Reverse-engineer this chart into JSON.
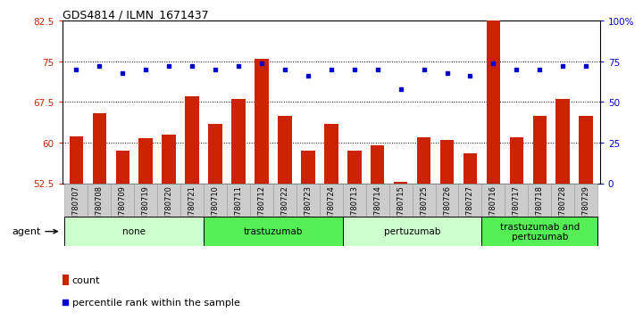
{
  "title": "GDS4814 / ILMN_1671437",
  "samples": [
    "GSM780707",
    "GSM780708",
    "GSM780709",
    "GSM780719",
    "GSM780720",
    "GSM780721",
    "GSM780710",
    "GSM780711",
    "GSM780712",
    "GSM780722",
    "GSM780723",
    "GSM780724",
    "GSM780713",
    "GSM780714",
    "GSM780715",
    "GSM780725",
    "GSM780726",
    "GSM780727",
    "GSM780716",
    "GSM780717",
    "GSM780718",
    "GSM780728",
    "GSM780729"
  ],
  "bar_values": [
    61.2,
    65.5,
    58.5,
    60.8,
    61.5,
    68.5,
    63.5,
    68.0,
    75.5,
    65.0,
    58.5,
    63.5,
    58.5,
    59.5,
    52.8,
    61.0,
    60.5,
    58.0,
    84.0,
    61.0,
    65.0,
    68.0,
    65.0
  ],
  "dot_values": [
    70,
    72,
    68,
    70,
    72,
    72,
    70,
    72,
    74,
    70,
    66,
    70,
    70,
    70,
    58,
    70,
    68,
    66,
    74,
    70,
    70,
    72,
    72
  ],
  "ylim_left": [
    52.5,
    82.5
  ],
  "ylim_right": [
    0,
    100
  ],
  "yticks_left": [
    52.5,
    60.0,
    67.5,
    75.0,
    82.5
  ],
  "yticks_right": [
    0,
    25,
    50,
    75,
    100
  ],
  "ytick_labels_left": [
    "52.5",
    "60",
    "67.5",
    "75",
    "82.5"
  ],
  "ytick_labels_right": [
    "0",
    "25",
    "50",
    "75",
    "100%"
  ],
  "bar_color": "#CC2200",
  "dot_color": "#0000CC",
  "groups": [
    {
      "label": "none",
      "start": 0,
      "end": 5,
      "color": "#CCFFCC"
    },
    {
      "label": "trastuzumab",
      "start": 6,
      "end": 11,
      "color": "#55EE55"
    },
    {
      "label": "pertuzumab",
      "start": 12,
      "end": 17,
      "color": "#CCFFCC"
    },
    {
      "label": "trastuzumab and\npertuzumab",
      "start": 18,
      "end": 22,
      "color": "#55EE55"
    }
  ],
  "agent_label": "agent",
  "legend_count_label": "count",
  "legend_pct_label": "percentile rank within the sample",
  "bar_width": 0.6,
  "tick_label_color": "#CC2200",
  "right_tick_color": "#0000CC",
  "xtick_bg_color": "#CCCCCC",
  "xtick_border_color": "#999999"
}
